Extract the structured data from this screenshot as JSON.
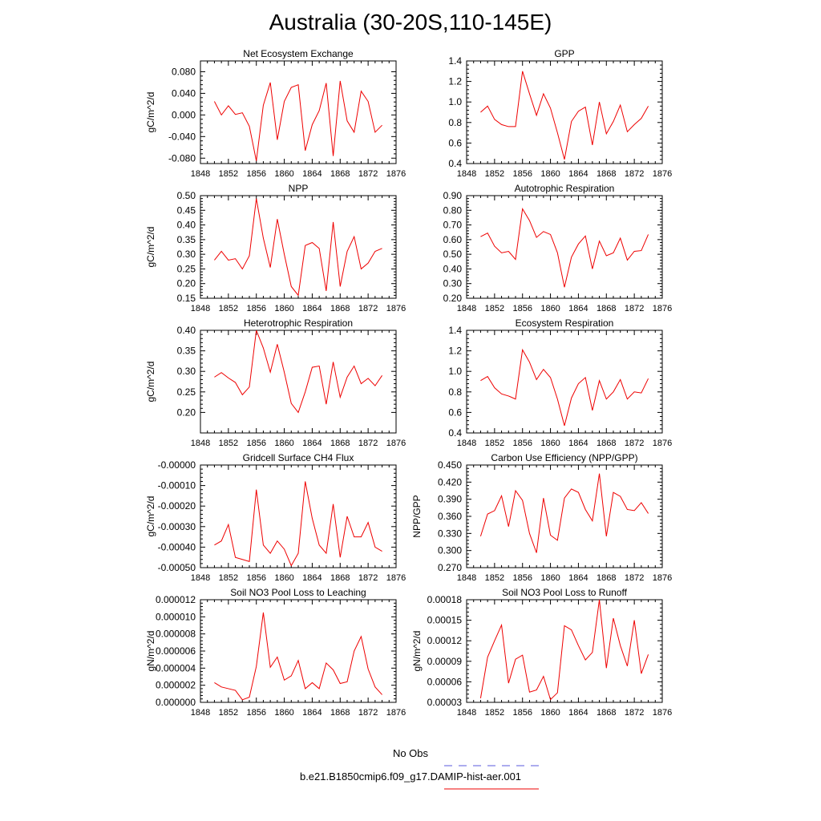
{
  "page": {
    "title": "Australia (30-20S,110-145E)"
  },
  "legend": {
    "obs_label": "No Obs",
    "obs_color": "#5a5adc",
    "model_label": "b.e21.B1850cmip6.f09_g17.DAMIP-hist-aer.001",
    "model_color": "#ee0000"
  },
  "chart_data": [
    {
      "type": "line",
      "title": "Net Ecosystem Exchange",
      "xlabel": "",
      "ylabel": "gC/m^2/d",
      "xlim": [
        1848,
        1876
      ],
      "ylim": [
        -0.09,
        0.1
      ],
      "xticks": [
        1848,
        1852,
        1856,
        1860,
        1864,
        1868,
        1872,
        1876
      ],
      "xticklabels": [
        "1848",
        "1852",
        "1856",
        "1860",
        "1864",
        "1868",
        "1872",
        "1876"
      ],
      "yticks": [
        -0.08,
        -0.04,
        0.0,
        0.04,
        0.08
      ],
      "yticklabels": [
        "-0.080",
        "-0.040",
        "0.000",
        "0.040",
        "0.080"
      ],
      "x": [
        1850,
        1851,
        1852,
        1853,
        1854,
        1855,
        1856,
        1857,
        1858,
        1859,
        1860,
        1861,
        1862,
        1863,
        1864,
        1865,
        1866,
        1867,
        1868,
        1869,
        1870,
        1871,
        1872,
        1873,
        1874
      ],
      "series": [
        {
          "values": [
            0.025,
            0.0,
            0.017,
            0.001,
            0.004,
            -0.021,
            -0.085,
            0.018,
            0.06,
            -0.046,
            0.025,
            0.051,
            0.056,
            -0.066,
            -0.018,
            0.008,
            0.059,
            -0.076,
            0.063,
            -0.011,
            -0.032,
            0.044,
            0.025,
            -0.032,
            -0.019
          ]
        }
      ]
    },
    {
      "type": "line",
      "title": "GPP",
      "xlabel": "",
      "ylabel": "",
      "xlim": [
        1848,
        1876
      ],
      "ylim": [
        0.4,
        1.4
      ],
      "xticks": [
        1848,
        1852,
        1856,
        1860,
        1864,
        1868,
        1872,
        1876
      ],
      "xticklabels": [
        "1848",
        "1852",
        "1856",
        "1860",
        "1864",
        "1868",
        "1872",
        "1876"
      ],
      "yticks": [
        0.4,
        0.6,
        0.8,
        1.0,
        1.2,
        1.4
      ],
      "yticklabels": [
        "0.4",
        "0.6",
        "0.8",
        "1.0",
        "1.2",
        "1.4"
      ],
      "x": [
        1850,
        1851,
        1852,
        1853,
        1854,
        1855,
        1856,
        1857,
        1858,
        1859,
        1860,
        1861,
        1862,
        1863,
        1864,
        1865,
        1866,
        1867,
        1868,
        1869,
        1870,
        1871,
        1872,
        1873,
        1874
      ],
      "series": [
        {
          "values": [
            0.9,
            0.96,
            0.83,
            0.78,
            0.76,
            0.76,
            1.3,
            1.08,
            0.87,
            1.08,
            0.94,
            0.7,
            0.44,
            0.81,
            0.91,
            0.95,
            0.58,
            1.0,
            0.69,
            0.81,
            0.97,
            0.71,
            0.78,
            0.84,
            0.96
          ]
        }
      ]
    },
    {
      "type": "line",
      "title": "NPP",
      "xlabel": "",
      "ylabel": "gC/m^2/d",
      "xlim": [
        1848,
        1876
      ],
      "ylim": [
        0.15,
        0.5
      ],
      "xticks": [
        1848,
        1852,
        1856,
        1860,
        1864,
        1868,
        1872,
        1876
      ],
      "xticklabels": [
        "1848",
        "1852",
        "1856",
        "1860",
        "1864",
        "1868",
        "1872",
        "1876"
      ],
      "yticks": [
        0.15,
        0.2,
        0.25,
        0.3,
        0.35,
        0.4,
        0.45,
        0.5
      ],
      "yticklabels": [
        "0.15",
        "0.20",
        "0.25",
        "0.30",
        "0.35",
        "0.40",
        "0.45",
        "0.50"
      ],
      "x": [
        1850,
        1851,
        1852,
        1853,
        1854,
        1855,
        1856,
        1857,
        1858,
        1859,
        1860,
        1861,
        1862,
        1863,
        1864,
        1865,
        1866,
        1867,
        1868,
        1869,
        1870,
        1871,
        1872,
        1873,
        1874
      ],
      "series": [
        {
          "values": [
            0.28,
            0.31,
            0.28,
            0.285,
            0.25,
            0.295,
            0.49,
            0.355,
            0.255,
            0.42,
            0.3,
            0.19,
            0.16,
            0.33,
            0.34,
            0.32,
            0.175,
            0.41,
            0.19,
            0.31,
            0.36,
            0.25,
            0.27,
            0.31,
            0.32
          ]
        }
      ]
    },
    {
      "type": "line",
      "title": "Autotrophic Respiration",
      "xlabel": "",
      "ylabel": "",
      "xlim": [
        1848,
        1876
      ],
      "ylim": [
        0.2,
        0.9
      ],
      "xticks": [
        1848,
        1852,
        1856,
        1860,
        1864,
        1868,
        1872,
        1876
      ],
      "xticklabels": [
        "1848",
        "1852",
        "1856",
        "1860",
        "1864",
        "1868",
        "1872",
        "1876"
      ],
      "yticks": [
        0.2,
        0.3,
        0.4,
        0.5,
        0.6,
        0.7,
        0.8,
        0.9
      ],
      "yticklabels": [
        "0.20",
        "0.30",
        "0.40",
        "0.50",
        "0.60",
        "0.70",
        "0.80",
        "0.90"
      ],
      "x": [
        1850,
        1851,
        1852,
        1853,
        1854,
        1855,
        1856,
        1857,
        1858,
        1859,
        1860,
        1861,
        1862,
        1863,
        1864,
        1865,
        1866,
        1867,
        1868,
        1869,
        1870,
        1871,
        1872,
        1873,
        1874
      ],
      "series": [
        {
          "values": [
            0.62,
            0.645,
            0.555,
            0.51,
            0.52,
            0.465,
            0.81,
            0.73,
            0.615,
            0.655,
            0.635,
            0.51,
            0.275,
            0.48,
            0.57,
            0.625,
            0.4,
            0.59,
            0.49,
            0.51,
            0.61,
            0.46,
            0.52,
            0.525,
            0.635
          ]
        }
      ]
    },
    {
      "type": "line",
      "title": "Heterotrophic Respiration",
      "xlabel": "",
      "ylabel": "gC/m^2/d",
      "xlim": [
        1848,
        1876
      ],
      "ylim": [
        0.15,
        0.4
      ],
      "xticks": [
        1848,
        1852,
        1856,
        1860,
        1864,
        1868,
        1872,
        1876
      ],
      "xticklabels": [
        "1848",
        "1852",
        "1856",
        "1860",
        "1864",
        "1868",
        "1872",
        "1876"
      ],
      "yticks": [
        0.2,
        0.25,
        0.3,
        0.35,
        0.4
      ],
      "yticklabels": [
        "0.20",
        "0.25",
        "0.30",
        "0.35",
        "0.40"
      ],
      "x": [
        1850,
        1851,
        1852,
        1853,
        1854,
        1855,
        1856,
        1857,
        1858,
        1859,
        1860,
        1861,
        1862,
        1863,
        1864,
        1865,
        1866,
        1867,
        1868,
        1869,
        1870,
        1871,
        1872,
        1873,
        1874
      ],
      "series": [
        {
          "values": [
            0.286,
            0.297,
            0.284,
            0.273,
            0.243,
            0.262,
            0.4,
            0.357,
            0.298,
            0.366,
            0.298,
            0.222,
            0.2,
            0.25,
            0.31,
            0.313,
            0.22,
            0.323,
            0.237,
            0.286,
            0.313,
            0.27,
            0.283,
            0.265,
            0.29
          ]
        }
      ]
    },
    {
      "type": "line",
      "title": "Ecosystem Respiration",
      "xlabel": "",
      "ylabel": "",
      "xlim": [
        1848,
        1876
      ],
      "ylim": [
        0.4,
        1.4
      ],
      "xticks": [
        1848,
        1852,
        1856,
        1860,
        1864,
        1868,
        1872,
        1876
      ],
      "xticklabels": [
        "1848",
        "1852",
        "1856",
        "1860",
        "1864",
        "1868",
        "1872",
        "1876"
      ],
      "yticks": [
        0.4,
        0.6,
        0.8,
        1.0,
        1.2,
        1.4
      ],
      "yticklabels": [
        "0.4",
        "0.6",
        "0.8",
        "1.0",
        "1.2",
        "1.4"
      ],
      "x": [
        1850,
        1851,
        1852,
        1853,
        1854,
        1855,
        1856,
        1857,
        1858,
        1859,
        1860,
        1861,
        1862,
        1863,
        1864,
        1865,
        1866,
        1867,
        1868,
        1869,
        1870,
        1871,
        1872,
        1873,
        1874
      ],
      "series": [
        {
          "values": [
            0.91,
            0.95,
            0.84,
            0.78,
            0.76,
            0.73,
            1.21,
            1.09,
            0.92,
            1.02,
            0.94,
            0.73,
            0.47,
            0.74,
            0.88,
            0.94,
            0.62,
            0.91,
            0.73,
            0.8,
            0.92,
            0.73,
            0.8,
            0.79,
            0.93
          ]
        }
      ]
    },
    {
      "type": "line",
      "title": "Gridcell Surface CH4 Flux",
      "xlabel": "",
      "ylabel": "gC/m^2/d",
      "xlim": [
        1848,
        1876
      ],
      "ylim": [
        -0.0005,
        0.0
      ],
      "xticks": [
        1848,
        1852,
        1856,
        1860,
        1864,
        1868,
        1872,
        1876
      ],
      "xticklabels": [
        "1848",
        "1852",
        "1856",
        "1860",
        "1864",
        "1868",
        "1872",
        "1876"
      ],
      "yticks": [
        -0.0005,
        -0.0004,
        -0.0003,
        -0.0002,
        -0.0001,
        0.0
      ],
      "yticklabels": [
        "-0.00050",
        "-0.00040",
        "-0.00030",
        "-0.00020",
        "-0.00010",
        "-0.00000"
      ],
      "x": [
        1850,
        1851,
        1852,
        1853,
        1854,
        1855,
        1856,
        1857,
        1858,
        1859,
        1860,
        1861,
        1862,
        1863,
        1864,
        1865,
        1866,
        1867,
        1868,
        1869,
        1870,
        1871,
        1872,
        1873,
        1874
      ],
      "series": [
        {
          "values": [
            -0.00039,
            -0.00037,
            -0.00029,
            -0.00045,
            -0.00046,
            -0.00047,
            -0.00012,
            -0.00039,
            -0.00043,
            -0.00037,
            -0.00041,
            -0.00049,
            -0.00043,
            -8e-05,
            -0.00026,
            -0.00039,
            -0.00043,
            -0.00019,
            -0.00045,
            -0.00025,
            -0.00035,
            -0.00035,
            -0.00028,
            -0.0004,
            -0.00042
          ]
        }
      ]
    },
    {
      "type": "line",
      "title": "Carbon Use Efficiency (NPP/GPP)",
      "xlabel": "",
      "ylabel": "NPP/GPP",
      "xlim": [
        1848,
        1876
      ],
      "ylim": [
        0.27,
        0.45
      ],
      "xticks": [
        1848,
        1852,
        1856,
        1860,
        1864,
        1868,
        1872,
        1876
      ],
      "xticklabels": [
        "1848",
        "1852",
        "1856",
        "1860",
        "1864",
        "1868",
        "1872",
        "1876"
      ],
      "yticks": [
        0.27,
        0.3,
        0.33,
        0.36,
        0.39,
        0.42,
        0.45
      ],
      "yticklabels": [
        "0.270",
        "0.300",
        "0.330",
        "0.360",
        "0.390",
        "0.420",
        "0.450"
      ],
      "x": [
        1850,
        1851,
        1852,
        1853,
        1854,
        1855,
        1856,
        1857,
        1858,
        1859,
        1860,
        1861,
        1862,
        1863,
        1864,
        1865,
        1866,
        1867,
        1868,
        1869,
        1870,
        1871,
        1872,
        1873,
        1874
      ],
      "series": [
        {
          "values": [
            0.325,
            0.364,
            0.37,
            0.396,
            0.342,
            0.405,
            0.388,
            0.33,
            0.296,
            0.392,
            0.327,
            0.318,
            0.392,
            0.408,
            0.402,
            0.372,
            0.352,
            0.435,
            0.325,
            0.402,
            0.395,
            0.372,
            0.37,
            0.384,
            0.365
          ]
        }
      ]
    },
    {
      "type": "line",
      "title": "Soil NO3 Pool Loss to Leaching",
      "xlabel": "",
      "ylabel": "gN/m^2/d",
      "xlim": [
        1848,
        1876
      ],
      "ylim": [
        0.0,
        1.2e-05
      ],
      "xticks": [
        1848,
        1852,
        1856,
        1860,
        1864,
        1868,
        1872,
        1876
      ],
      "xticklabels": [
        "1848",
        "1852",
        "1856",
        "1860",
        "1864",
        "1868",
        "1872",
        "1876"
      ],
      "yticks": [
        0.0,
        2e-06,
        4e-06,
        6e-06,
        8e-06,
        1e-05,
        1.2e-05
      ],
      "yticklabels": [
        "0.000000",
        "0.000002",
        "0.000004",
        "0.000006",
        "0.000008",
        "0.000010",
        "0.000012"
      ],
      "x": [
        1850,
        1851,
        1852,
        1853,
        1854,
        1855,
        1856,
        1857,
        1858,
        1859,
        1860,
        1861,
        1862,
        1863,
        1864,
        1865,
        1866,
        1867,
        1868,
        1869,
        1870,
        1871,
        1872,
        1873,
        1874
      ],
      "series": [
        {
          "values": [
            2.3e-06,
            1.8e-06,
            1.6e-06,
            1.4e-06,
            3e-07,
            6e-07,
            4.2e-06,
            1.05e-05,
            4.1e-06,
            5.3e-06,
            2.6e-06,
            3.1e-06,
            4.9e-06,
            1.6e-06,
            2.3e-06,
            1.6e-06,
            4.6e-06,
            3.8e-06,
            2.2e-06,
            2.4e-06,
            6e-06,
            7.7e-06,
            3.9e-06,
            1.8e-06,
            9e-07
          ]
        }
      ]
    },
    {
      "type": "line",
      "title": "Soil NO3 Pool Loss to Runoff",
      "xlabel": "",
      "ylabel": "gN/m^2/d",
      "xlim": [
        1848,
        1876
      ],
      "ylim": [
        3e-05,
        0.00018
      ],
      "xticks": [
        1848,
        1852,
        1856,
        1860,
        1864,
        1868,
        1872,
        1876
      ],
      "xticklabels": [
        "1848",
        "1852",
        "1856",
        "1860",
        "1864",
        "1868",
        "1872",
        "1876"
      ],
      "yticks": [
        3e-05,
        6e-05,
        9e-05,
        0.00012,
        0.00015,
        0.00018
      ],
      "yticklabels": [
        "0.00003",
        "0.00006",
        "0.00009",
        "0.00012",
        "0.00015",
        "0.00018"
      ],
      "x": [
        1850,
        1851,
        1852,
        1853,
        1854,
        1855,
        1856,
        1857,
        1858,
        1859,
        1860,
        1861,
        1862,
        1863,
        1864,
        1865,
        1866,
        1867,
        1868,
        1869,
        1870,
        1871,
        1872,
        1873,
        1874
      ],
      "series": [
        {
          "values": [
            3.6e-05,
            9.6e-05,
            0.00012,
            0.000143,
            5.8e-05,
            9.3e-05,
            9.9e-05,
            4.5e-05,
            4.8e-05,
            6.8e-05,
            3.4e-05,
            4.4e-05,
            0.000142,
            0.000136,
            0.000113,
            9.2e-05,
            0.000103,
            0.00018,
            8e-05,
            0.000153,
            0.000113,
            8.3e-05,
            0.00015,
            7.2e-05,
            0.0001
          ]
        }
      ]
    }
  ]
}
